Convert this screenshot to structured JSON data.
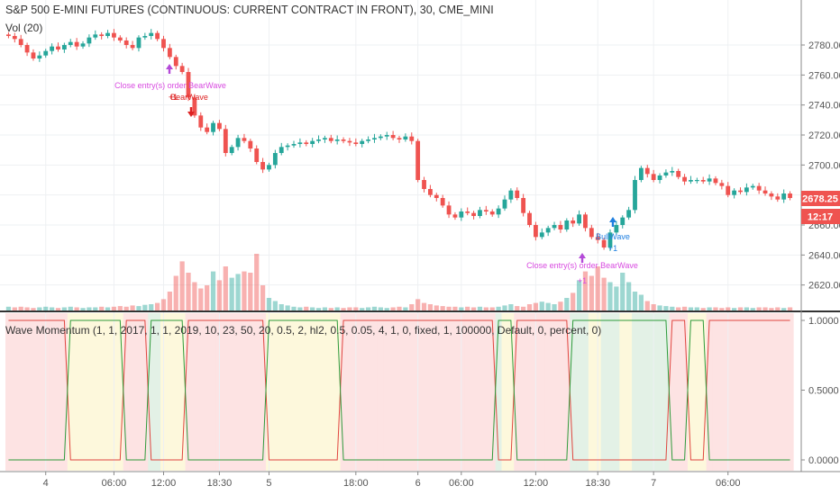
{
  "header": {
    "symbol_title": "S&P 500 E-MINI FUTURES (CONTINUOUS: CURRENT CONTRACT IN FRONT), 30, CME_MINI",
    "volume_label": "Vol (20)"
  },
  "indicator": {
    "label": "Wave Momentum (1, 1, 2017, 1, 1, 2019, 10, 23, 50, 20, 0.5, 2, hl2, 0.5, 0.05, 4, 1, 0, fixed, 1, 100000, Default, 0, percent, 0)"
  },
  "price_axis": {
    "ticks": [
      "2780.00",
      "2760.00",
      "2740.00",
      "2720.00",
      "2700.00",
      "2680.00",
      "2660.00",
      "2640.00",
      "2620.00"
    ],
    "last_price": "2678.25",
    "countdown": "12:17"
  },
  "indicator_axis": {
    "ticks": [
      "1.0000",
      "0.5000",
      "0.0000"
    ]
  },
  "time_axis": {
    "ticks": [
      "4",
      "06:00",
      "12:00",
      "18:30",
      "5",
      "18:00",
      "6",
      "06:00",
      "12:00",
      "18:30",
      "7",
      "06:00"
    ]
  },
  "annotations": [
    {
      "text": "Close entry(s) order BearWave",
      "color": "#d84ae0"
    },
    {
      "text": "+1",
      "color": "#d22"
    },
    {
      "text": "BearWave",
      "color": "#d22"
    },
    {
      "text": "BullWave",
      "color": "#1f7fe0"
    },
    {
      "text": "+1",
      "color": "#1f7fe0"
    },
    {
      "text": "Close entry(s) order BearWave",
      "color": "#d84ae0"
    },
    {
      "text": "+1",
      "color": "#d84ae0"
    }
  ],
  "chart_data": {
    "type": "candlestick",
    "ylim": [
      2612,
      2792
    ],
    "up_color": "#26a69a",
    "down_color": "#ef5350",
    "closes": [
      2786,
      2784,
      2780,
      2775,
      2771,
      2773,
      2776,
      2779,
      2777,
      2780,
      2782,
      2779,
      2781,
      2785,
      2787,
      2786,
      2788,
      2785,
      2783,
      2780,
      2778,
      2785,
      2786,
      2788,
      2784,
      2778,
      2772,
      2766,
      2762,
      2745,
      2733,
      2725,
      2722,
      2728,
      2724,
      2708,
      2712,
      2718,
      2716,
      2711,
      2702,
      2697,
      2700,
      2708,
      2712,
      2713,
      2714,
      2715,
      2714,
      2716,
      2717,
      2718,
      2716,
      2717,
      2716,
      2715,
      2714,
      2716,
      2717,
      2718,
      2719,
      2720,
      2718,
      2717,
      2719,
      2716,
      2690,
      2684,
      2680,
      2678,
      2673,
      2667,
      2665,
      2669,
      2668,
      2666,
      2670,
      2669,
      2667,
      2671,
      2677,
      2683,
      2678,
      2668,
      2660,
      2652,
      2655,
      2658,
      2660,
      2657,
      2663,
      2661,
      2667,
      2658,
      2652,
      2650,
      2645,
      2655,
      2660,
      2665,
      2670,
      2690,
      2698,
      2694,
      2690,
      2693,
      2695,
      2696,
      2692,
      2689,
      2690,
      2690,
      2689,
      2691,
      2688,
      2686,
      2680,
      2683,
      2682,
      2685,
      2686,
      2683,
      2681,
      2679,
      2677,
      2681,
      2678
    ],
    "volumes": [
      0.06,
      0.05,
      0.06,
      0.05,
      0.04,
      0.05,
      0.06,
      0.05,
      0.04,
      0.05,
      0.06,
      0.05,
      0.04,
      0.05,
      0.05,
      0.06,
      0.05,
      0.06,
      0.07,
      0.06,
      0.08,
      0.07,
      0.09,
      0.1,
      0.12,
      0.18,
      0.3,
      0.55,
      0.78,
      0.6,
      0.45,
      0.35,
      0.4,
      0.62,
      0.48,
      0.7,
      0.52,
      0.58,
      0.62,
      0.6,
      0.9,
      0.4,
      0.2,
      0.15,
      0.1,
      0.08,
      0.06,
      0.05,
      0.06,
      0.05,
      0.04,
      0.05,
      0.04,
      0.05,
      0.04,
      0.05,
      0.05,
      0.04,
      0.05,
      0.06,
      0.05,
      0.04,
      0.05,
      0.06,
      0.05,
      0.1,
      0.18,
      0.12,
      0.1,
      0.08,
      0.07,
      0.06,
      0.06,
      0.05,
      0.06,
      0.05,
      0.06,
      0.05,
      0.05,
      0.06,
      0.08,
      0.1,
      0.07,
      0.06,
      0.1,
      0.12,
      0.14,
      0.12,
      0.1,
      0.14,
      0.2,
      0.28,
      0.48,
      0.62,
      0.55,
      0.7,
      0.52,
      0.45,
      0.38,
      0.6,
      0.45,
      0.3,
      0.25,
      0.15,
      0.1,
      0.08,
      0.07,
      0.06,
      0.05,
      0.06,
      0.05,
      0.05,
      0.04,
      0.05,
      0.05,
      0.04,
      0.05,
      0.04,
      0.05,
      0.05,
      0.04,
      0.05,
      0.05,
      0.04,
      0.05,
      0.04,
      0.05
    ],
    "wave_zones": [
      0,
      0,
      0,
      0,
      0,
      0,
      0,
      0,
      0,
      0,
      2,
      2,
      2,
      2,
      2,
      2,
      2,
      2,
      2,
      0,
      0,
      0,
      0,
      1,
      1,
      2,
      2,
      2,
      2,
      0,
      0,
      0,
      0,
      0,
      0,
      0,
      0,
      0,
      0,
      0,
      0,
      0,
      2,
      2,
      2,
      2,
      2,
      2,
      2,
      2,
      2,
      2,
      2,
      2,
      0,
      0,
      0,
      0,
      0,
      0,
      0,
      0,
      0,
      0,
      0,
      0,
      0,
      0,
      0,
      0,
      0,
      0,
      0,
      0,
      0,
      0,
      0,
      0,
      0,
      1,
      2,
      2,
      0,
      0,
      0,
      0,
      0,
      0,
      0,
      0,
      0,
      1,
      1,
      1,
      2,
      2,
      1,
      1,
      1,
      2,
      2,
      1,
      1,
      1,
      1,
      1,
      1,
      0,
      0,
      0,
      2,
      2,
      2,
      0,
      0,
      0,
      0,
      0,
      0,
      0,
      0,
      0,
      0,
      0,
      0,
      0,
      0
    ]
  }
}
